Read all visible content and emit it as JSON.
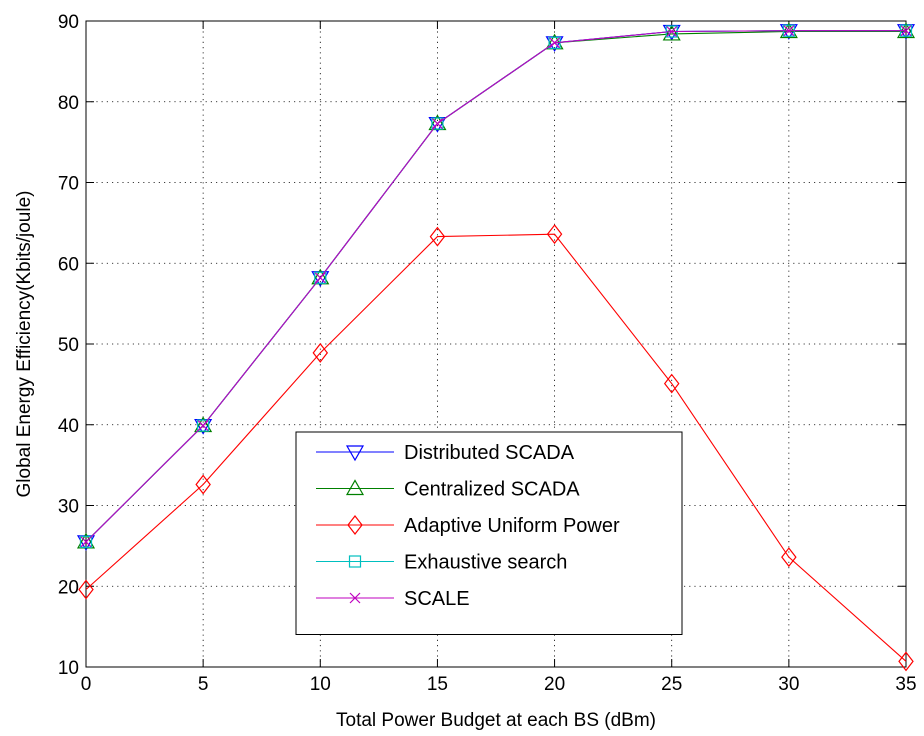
{
  "chart_data": {
    "type": "line",
    "title": "",
    "xlabel": "Total Power Budget at each BS (dBm)",
    "ylabel": "Global Energy Efficiency(Kbits/joule)",
    "xlim": [
      0,
      35
    ],
    "ylim": [
      10,
      90
    ],
    "xticks": [
      0,
      5,
      10,
      15,
      20,
      25,
      30,
      35
    ],
    "yticks": [
      10,
      20,
      30,
      40,
      50,
      60,
      70,
      80,
      90
    ],
    "grid": true,
    "legend_position": "lower-center",
    "x": [
      0,
      5,
      10,
      15,
      20,
      25,
      30,
      35
    ],
    "series": [
      {
        "name": "Distributed SCADA",
        "color": "#0000ff",
        "marker": "triangle-down",
        "values": [
          25.5,
          39.9,
          58.2,
          77.3,
          87.3,
          88.7,
          88.8,
          88.8
        ]
      },
      {
        "name": "Centralized SCADA",
        "color": "#008000",
        "marker": "triangle-up",
        "values": [
          25.5,
          39.9,
          58.2,
          77.3,
          87.3,
          88.4,
          88.7,
          88.7
        ]
      },
      {
        "name": "Adaptive Uniform Power",
        "color": "#ff0000",
        "marker": "diamond",
        "values": [
          19.6,
          32.6,
          48.9,
          63.3,
          63.6,
          45.1,
          23.6,
          10.7
        ]
      },
      {
        "name": "Exhaustive search",
        "color": "#00bfbf",
        "marker": "square",
        "values": [
          25.5,
          39.9,
          58.2,
          77.3,
          87.3,
          88.7,
          88.8,
          88.8
        ]
      },
      {
        "name": "SCALE",
        "color": "#bf00bf",
        "marker": "x",
        "values": [
          25.5,
          39.9,
          58.2,
          77.3,
          87.3,
          88.7,
          88.8,
          88.8
        ]
      }
    ]
  }
}
